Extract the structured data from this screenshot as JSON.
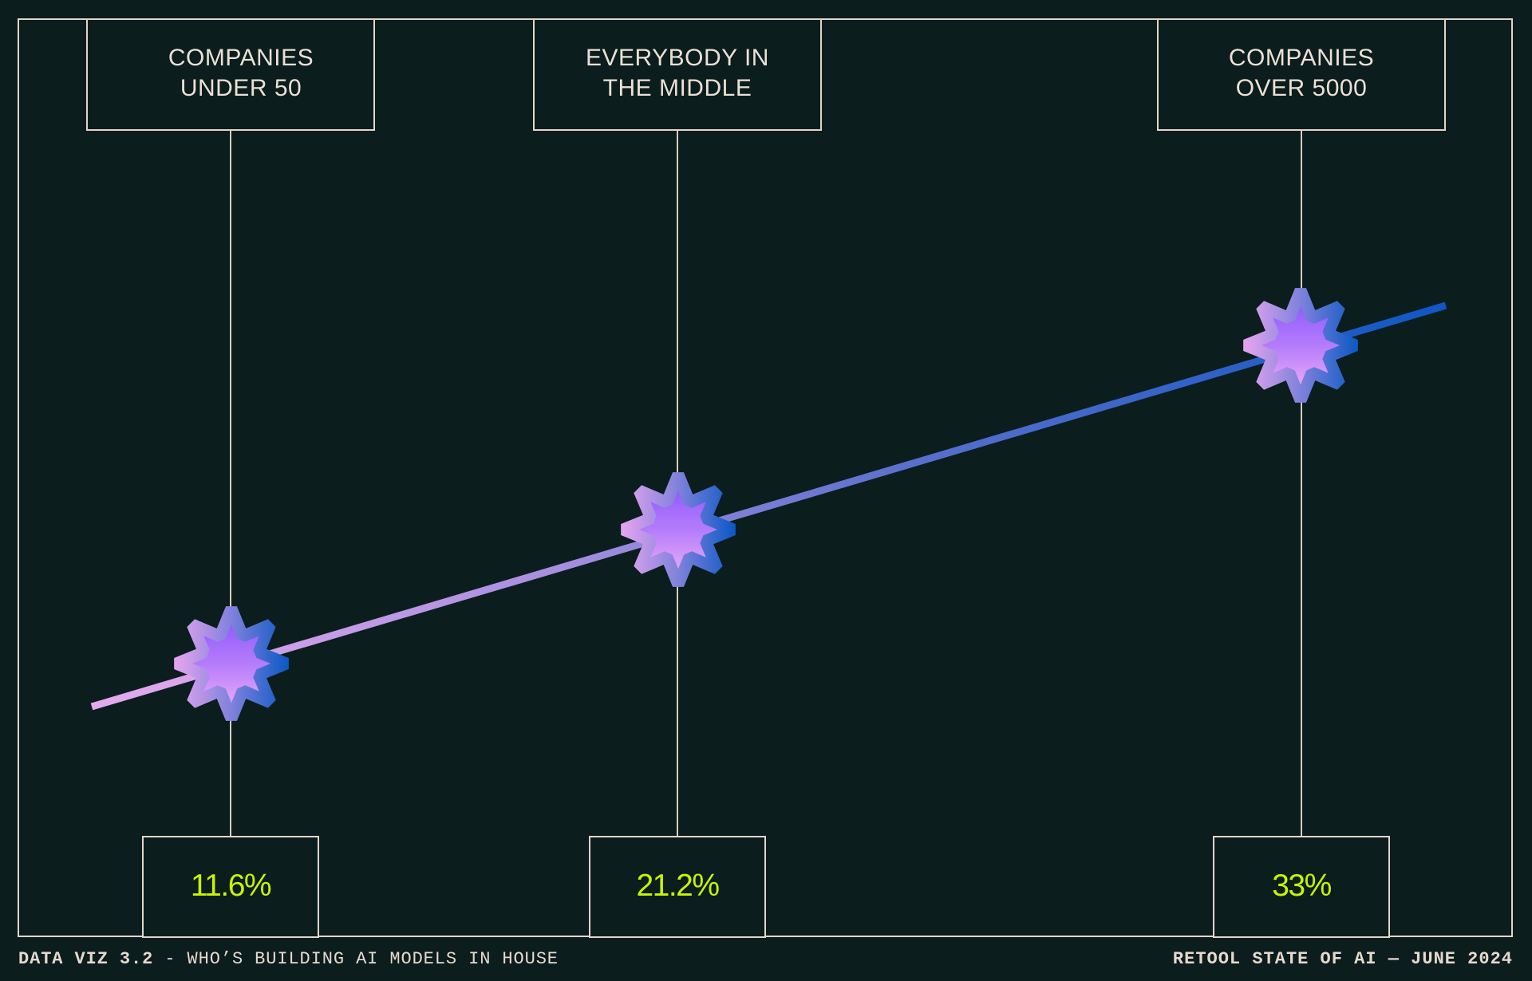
{
  "colors": {
    "background": "#0b1d1c",
    "line_cream": "#e3d5cb",
    "value_lime": "#c8f400",
    "trend_start": "#e4a8ec",
    "trend_end": "#0f58c4",
    "star_fill_top": "#8b58ff",
    "star_fill_bottom": "#f8b2f8"
  },
  "footer": {
    "left_bold": "DATA VIZ 3.2",
    "left_rest": " - WHO’S BUILDING AI MODELS IN HOUSE",
    "right": "RETOOL STATE OF AI — JUNE 2024"
  },
  "groups": [
    {
      "label": "COMPANIES\nUNDER 50",
      "value": "11.6%",
      "icon": "star-8-point-icon"
    },
    {
      "label": "EVERYBODY IN\nTHE MIDDLE",
      "value": "21.2%",
      "icon": "star-8-point-icon"
    },
    {
      "label": "COMPANIES\nOVER 5000",
      "value": "33%",
      "icon": "star-8-point-icon"
    }
  ],
  "chart_data": {
    "type": "line",
    "title": "DATA VIZ 3.2 - WHO’S BUILDING AI MODELS IN HOUSE",
    "source": "RETOOL STATE OF AI — JUNE 2024",
    "categories": [
      "COMPANIES UNDER 50",
      "EVERYBODY IN THE MIDDLE",
      "COMPANIES OVER 5000"
    ],
    "series": [
      {
        "name": "Building AI models in house",
        "values": [
          11.6,
          21.2,
          33.0
        ],
        "unit": "%"
      }
    ],
    "data_labels": [
      "11.6%",
      "21.2%",
      "33%"
    ],
    "xlabel": "",
    "ylabel": "",
    "grid": false,
    "legend": "none",
    "marker": "8-point star",
    "line_style": "gradient pink to blue, linear trend line extending past endpoints"
  }
}
